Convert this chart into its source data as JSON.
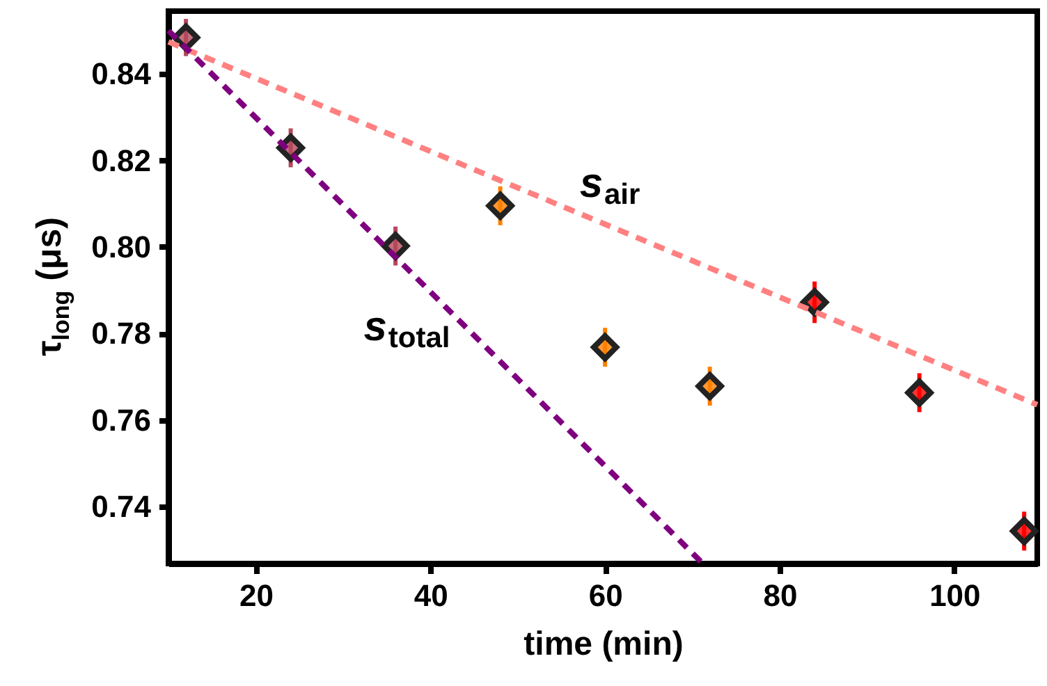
{
  "chart_data": {
    "type": "scatter",
    "xlabel": "time (min)",
    "ylabel": "τ$_{long}$ (μs)",
    "xlim": [
      10,
      109.5
    ],
    "ylim": [
      0.7268,
      0.8545
    ],
    "xticks": [
      20,
      40,
      60,
      80,
      100
    ],
    "yticks": [
      0.74,
      0.76,
      0.78,
      {
        "value": 0.8,
        "label": "0.80"
      },
      0.82,
      0.84
    ],
    "grid": false,
    "series": [
      {
        "color": "#b5485d",
        "marker": "diamond",
        "x": [
          12,
          24,
          36
        ],
        "values": [
          0.8484,
          0.8229,
          0.8002
        ],
        "errors": [
          0.0043,
          0.0045,
          0.0045
        ]
      },
      {
        "color": "#ff8000",
        "marker": "diamond",
        "x": [
          48,
          60,
          72
        ],
        "values": [
          0.8095,
          0.7768,
          0.7678
        ],
        "errors": [
          0.0045,
          0.0045,
          0.0045
        ]
      },
      {
        "color": "#ff0000",
        "marker": "diamond",
        "x": [
          84,
          96,
          108
        ],
        "values": [
          0.7872,
          0.7663,
          0.7343
        ],
        "errors": [
          0.0048,
          0.0045,
          0.0045
        ]
      },
      {
        "type": "line",
        "name": "s$_{air}$",
        "color": "#ff8080",
        "line_style": "dashed",
        "x": [
          10,
          109.5
        ],
        "values": [
          0.8474,
          0.7635
        ]
      },
      {
        "type": "line",
        "name": "s$_{total}$",
        "color": "#7f007f",
        "line_style": "dashed",
        "x": [
          10,
          71.2
        ],
        "values": [
          0.85,
          0.7268
        ]
      }
    ]
  }
}
